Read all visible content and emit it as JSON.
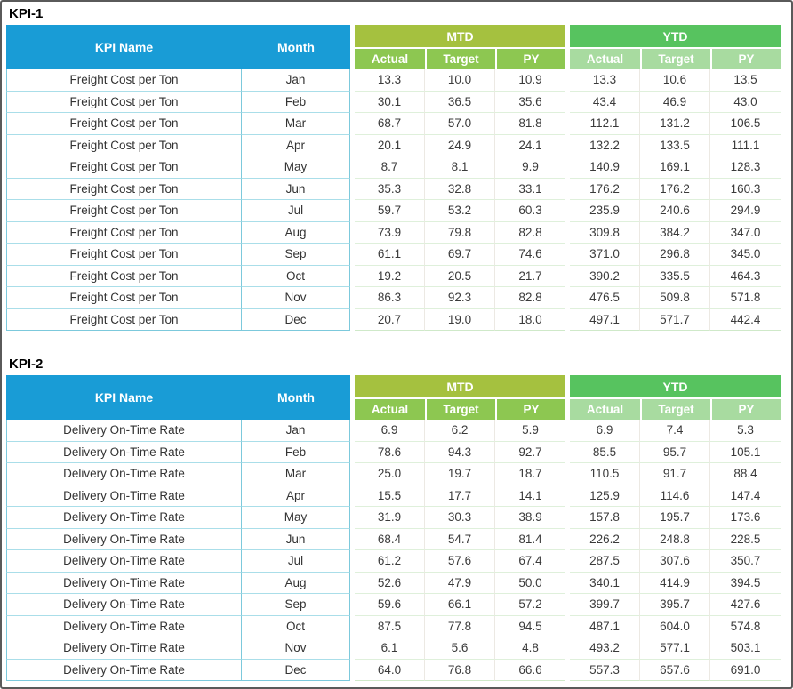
{
  "chart_data": [
    {
      "type": "table",
      "title": "KPI-1",
      "kpi_name": "Freight Cost per Ton",
      "headers": {
        "kpi_name": "KPI Name",
        "month": "Month",
        "mtd": "MTD",
        "ytd": "YTD",
        "actual": "Actual",
        "target": "Target",
        "py": "PY"
      },
      "rows": [
        {
          "month": "Jan",
          "mtd": [
            "13.3",
            "10.0",
            "10.9"
          ],
          "ytd": [
            "13.3",
            "10.6",
            "13.5"
          ]
        },
        {
          "month": "Feb",
          "mtd": [
            "30.1",
            "36.5",
            "35.6"
          ],
          "ytd": [
            "43.4",
            "46.9",
            "43.0"
          ]
        },
        {
          "month": "Mar",
          "mtd": [
            "68.7",
            "57.0",
            "81.8"
          ],
          "ytd": [
            "112.1",
            "131.2",
            "106.5"
          ]
        },
        {
          "month": "Apr",
          "mtd": [
            "20.1",
            "24.9",
            "24.1"
          ],
          "ytd": [
            "132.2",
            "133.5",
            "111.1"
          ]
        },
        {
          "month": "May",
          "mtd": [
            "8.7",
            "8.1",
            "9.9"
          ],
          "ytd": [
            "140.9",
            "169.1",
            "128.3"
          ]
        },
        {
          "month": "Jun",
          "mtd": [
            "35.3",
            "32.8",
            "33.1"
          ],
          "ytd": [
            "176.2",
            "176.2",
            "160.3"
          ]
        },
        {
          "month": "Jul",
          "mtd": [
            "59.7",
            "53.2",
            "60.3"
          ],
          "ytd": [
            "235.9",
            "240.6",
            "294.9"
          ]
        },
        {
          "month": "Aug",
          "mtd": [
            "73.9",
            "79.8",
            "82.8"
          ],
          "ytd": [
            "309.8",
            "384.2",
            "347.0"
          ]
        },
        {
          "month": "Sep",
          "mtd": [
            "61.1",
            "69.7",
            "74.6"
          ],
          "ytd": [
            "371.0",
            "296.8",
            "345.0"
          ]
        },
        {
          "month": "Oct",
          "mtd": [
            "19.2",
            "20.5",
            "21.7"
          ],
          "ytd": [
            "390.2",
            "335.5",
            "464.3"
          ]
        },
        {
          "month": "Nov",
          "mtd": [
            "86.3",
            "92.3",
            "82.8"
          ],
          "ytd": [
            "476.5",
            "509.8",
            "571.8"
          ]
        },
        {
          "month": "Dec",
          "mtd": [
            "20.7",
            "19.0",
            "18.0"
          ],
          "ytd": [
            "497.1",
            "571.7",
            "442.4"
          ]
        }
      ]
    },
    {
      "type": "table",
      "title": "KPI-2",
      "kpi_name": "Delivery On-Time Rate",
      "headers": {
        "kpi_name": "KPI Name",
        "month": "Month",
        "mtd": "MTD",
        "ytd": "YTD",
        "actual": "Actual",
        "target": "Target",
        "py": "PY"
      },
      "rows": [
        {
          "month": "Jan",
          "mtd": [
            "6.9",
            "6.2",
            "5.9"
          ],
          "ytd": [
            "6.9",
            "7.4",
            "5.3"
          ]
        },
        {
          "month": "Feb",
          "mtd": [
            "78.6",
            "94.3",
            "92.7"
          ],
          "ytd": [
            "85.5",
            "95.7",
            "105.1"
          ]
        },
        {
          "month": "Mar",
          "mtd": [
            "25.0",
            "19.7",
            "18.7"
          ],
          "ytd": [
            "110.5",
            "91.7",
            "88.4"
          ]
        },
        {
          "month": "Apr",
          "mtd": [
            "15.5",
            "17.7",
            "14.1"
          ],
          "ytd": [
            "125.9",
            "114.6",
            "147.4"
          ]
        },
        {
          "month": "May",
          "mtd": [
            "31.9",
            "30.3",
            "38.9"
          ],
          "ytd": [
            "157.8",
            "195.7",
            "173.6"
          ]
        },
        {
          "month": "Jun",
          "mtd": [
            "68.4",
            "54.7",
            "81.4"
          ],
          "ytd": [
            "226.2",
            "248.8",
            "228.5"
          ]
        },
        {
          "month": "Jul",
          "mtd": [
            "61.2",
            "57.6",
            "67.4"
          ],
          "ytd": [
            "287.5",
            "307.6",
            "350.7"
          ]
        },
        {
          "month": "Aug",
          "mtd": [
            "52.6",
            "47.9",
            "50.0"
          ],
          "ytd": [
            "340.1",
            "414.9",
            "394.5"
          ]
        },
        {
          "month": "Sep",
          "mtd": [
            "59.6",
            "66.1",
            "57.2"
          ],
          "ytd": [
            "399.7",
            "395.7",
            "427.6"
          ]
        },
        {
          "month": "Oct",
          "mtd": [
            "87.5",
            "77.8",
            "94.5"
          ],
          "ytd": [
            "487.1",
            "604.0",
            "574.8"
          ]
        },
        {
          "month": "Nov",
          "mtd": [
            "6.1",
            "5.6",
            "4.8"
          ],
          "ytd": [
            "493.2",
            "577.1",
            "503.1"
          ]
        },
        {
          "month": "Dec",
          "mtd": [
            "64.0",
            "76.8",
            "66.6"
          ],
          "ytd": [
            "557.3",
            "657.6",
            "691.0"
          ]
        }
      ]
    }
  ],
  "colors": {
    "header_blue": "#199cd6",
    "mtd_band_green": "#a5c13f",
    "mtd_subheader_green": "#8dc751",
    "ytd_band_green": "#57c35f",
    "ytd_subheader_green": "#a8dba0",
    "left_border_teal": "#7cc9dc",
    "row_border_cyan": "#aadee9",
    "data_row_border_green": "#dff0db",
    "header_text": "#ffffff",
    "data_text": "#3a3a3a"
  }
}
